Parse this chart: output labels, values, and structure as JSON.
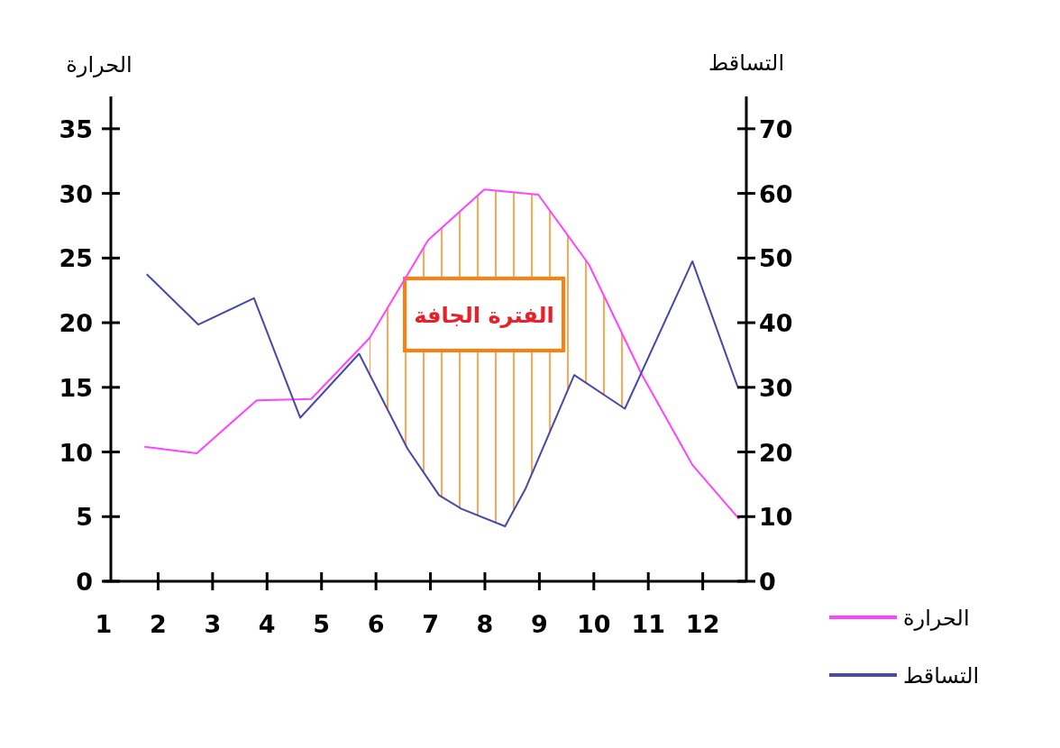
{
  "chart_data": {
    "type": "line",
    "ylabel": "الحرارة",
    "y2label": "التساقط",
    "xlim": [
      1,
      12.8
    ],
    "xticks": [
      {
        "value": 1,
        "label": "1"
      },
      {
        "value": 2,
        "label": "2"
      },
      {
        "value": 3,
        "label": "3"
      },
      {
        "value": 4,
        "label": "4"
      },
      {
        "value": 5,
        "label": "5"
      },
      {
        "value": 6,
        "label": "6"
      },
      {
        "value": 7,
        "label": "7"
      },
      {
        "value": 8,
        "label": "8"
      },
      {
        "value": 9,
        "label": "9"
      },
      {
        "value": 10,
        "label": "10"
      },
      {
        "value": 11,
        "label": "11"
      },
      {
        "value": 12,
        "label": "12"
      }
    ],
    "ylim": [
      0,
      37.5
    ],
    "yticks": [
      0,
      5,
      10,
      15,
      20,
      25,
      30,
      35
    ],
    "y2lim": [
      0,
      75
    ],
    "y2ticks": [
      0,
      10,
      20,
      30,
      40,
      50,
      60,
      70
    ],
    "grid": false,
    "legend": "bottom right",
    "marker": "none",
    "line_style": "solid",
    "series": [
      {
        "name": "الحرارة",
        "color": "#ff44ff",
        "x": [
          1.75,
          2.71,
          3.81,
          4.81,
          5.88,
          6.96,
          7.99,
          8.98,
          9.91,
          10.88,
          11.81,
          12.67
        ],
        "values": [
          10.4,
          9.9,
          14,
          14.1,
          18.8,
          26.4,
          30.3,
          29.9,
          24.5,
          16,
          9,
          4.8
        ]
      },
      {
        "name": "التساقط",
        "color": "#4848a8",
        "axis": "y2",
        "x": [
          1.79,
          2.74,
          3.76,
          4.61,
          5.69,
          6.58,
          7.16,
          7.57,
          8.37,
          8.75,
          9.64,
          10.57,
          11.81,
          12.64
        ],
        "values": [
          47.5,
          39.7,
          43.8,
          25.3,
          35.2,
          20.5,
          13.3,
          11.2,
          8.5,
          14.4,
          31.9,
          26.7,
          49.5,
          30.1
        ]
      }
    ],
    "bands": [
      {
        "axis": "x",
        "from": 5.88,
        "to": 10.6,
        "label": "الفترة الجافة",
        "color": "#ff7f0e"
      }
    ]
  }
}
